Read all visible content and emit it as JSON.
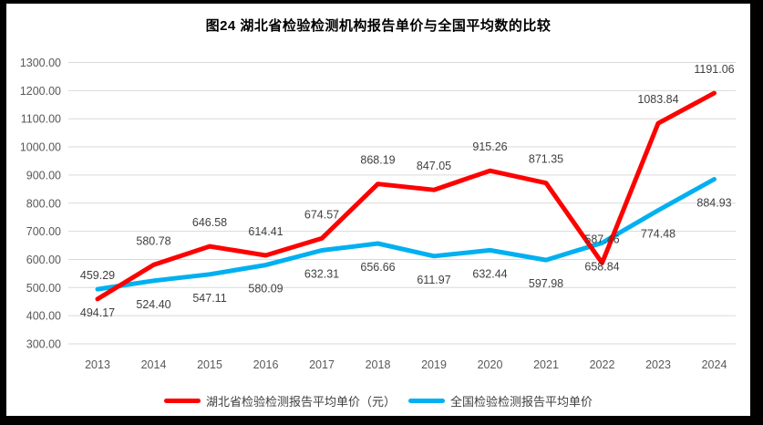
{
  "chart_data": {
    "type": "line",
    "title": "图24 湖北省检验检测机构报告单价与全国平均数的比较",
    "categories": [
      "2013",
      "2014",
      "2015",
      "2016",
      "2017",
      "2018",
      "2019",
      "2020",
      "2021",
      "2022",
      "2023",
      "2024"
    ],
    "series": [
      {
        "name": "湖北省检验检测报告平均单价（元）",
        "color": "#FF0000",
        "values": [
          459.29,
          580.78,
          646.58,
          614.41,
          674.57,
          868.19,
          847.05,
          915.26,
          871.35,
          587.46,
          1083.84,
          1191.06
        ],
        "label_position": "above"
      },
      {
        "name": "全国检验检测报告平均单价",
        "color": "#00B0F0",
        "values": [
          494.17,
          524.4,
          547.11,
          580.09,
          632.31,
          656.66,
          611.97,
          632.44,
          597.98,
          658.84,
          774.48,
          884.93
        ],
        "label_position": "below"
      }
    ],
    "ylim": [
      300,
      1300
    ],
    "ytick_step": 100,
    "yticks": [
      "300.00",
      "400.00",
      "500.00",
      "600.00",
      "700.00",
      "800.00",
      "900.00",
      "1000.00",
      "1100.00",
      "1200.00",
      "1300.00"
    ],
    "grid": true,
    "legend_position": "bottom",
    "colors": {
      "gridline": "#D9D9D9",
      "axis_text": "#595959",
      "data_label_text": "#404040",
      "title_text": "#000000",
      "background": "#FFFFFF",
      "frame": "#000000"
    }
  }
}
